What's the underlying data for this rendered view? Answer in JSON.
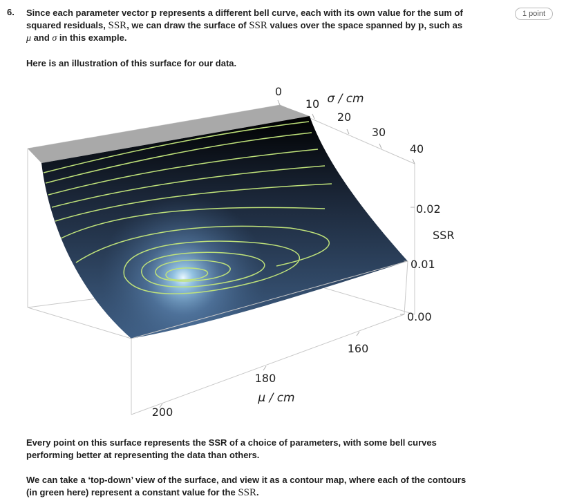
{
  "question": {
    "number": "6.",
    "text_parts": {
      "a": "Since each parameter vector ",
      "p": "p",
      "b": " represents a different bell curve, each with its own value for the sum of squared residuals, ",
      "ssr": "SSR",
      "c": ", we can draw the surface of ",
      "ssr2": "SSR",
      "d": " values over the space spanned by ",
      "p2": "p",
      "e": ", such as ",
      "mu": "μ",
      "f": " and ",
      "sigma": "σ",
      "g": " in this example."
    },
    "points_badge": "1 point"
  },
  "intro": "Here is an illustration of this surface for our data.",
  "plot": {
    "sigma_axis_label": "σ / cm",
    "sigma_ticks": [
      "0",
      "10",
      "20",
      "30",
      "40"
    ],
    "ssr_axis_label": "SSR",
    "ssr_ticks": [
      "0.02",
      "0.01",
      "0.00"
    ],
    "mu_axis_label": "μ / cm",
    "mu_ticks": [
      "160",
      "180",
      "200"
    ],
    "colors": {
      "surface_dark": "#000000",
      "surface_mid": "#3d5a7d",
      "glow": "#e8f6ff",
      "contour": "#bfe27a",
      "box": "#c8c8c8"
    }
  },
  "para2": "Every point on this surface represents the SSR of a choice of parameters, with some bell curves performing better at representing the data than others.",
  "para3": {
    "a": "We can take a ‘top-down’ view of the surface, and view it as a contour map, where each of the contours (in green here) represent a constant value for the ",
    "ssr": "SSR",
    "b": "."
  }
}
